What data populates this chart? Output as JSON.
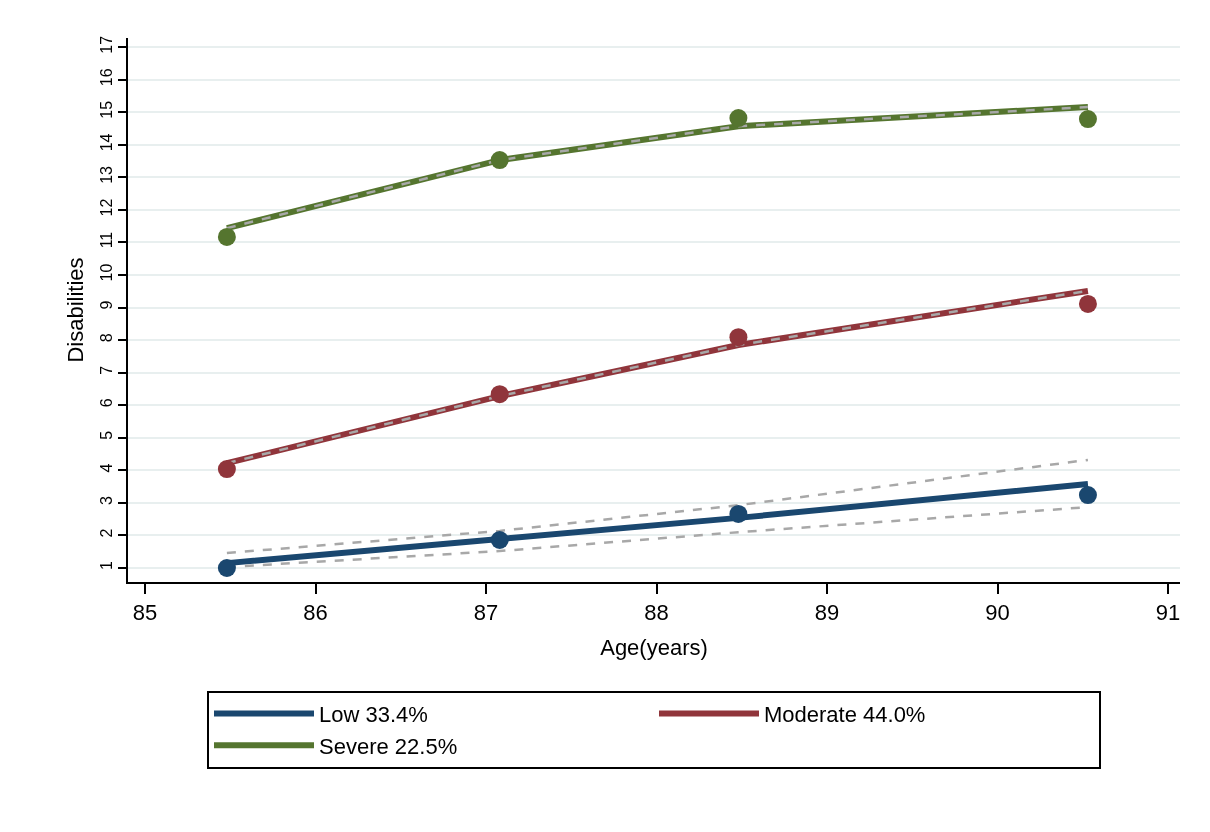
{
  "chart_data": {
    "type": "line",
    "xlabel": "Age(years)",
    "ylabel": "Disabilities",
    "x": [
      85.48,
      87.08,
      88.48,
      90.53
    ],
    "xlim": [
      84.9,
      91.07
    ],
    "xticks": [
      85,
      86,
      87,
      88,
      89,
      90,
      91
    ],
    "ylim": [
      0.57,
      17.28
    ],
    "yticks": [
      1,
      2,
      3,
      4,
      5,
      6,
      7,
      8,
      9,
      10,
      11,
      12,
      13,
      14,
      15,
      16,
      17
    ],
    "grid": "y",
    "legend": "bottom",
    "marker": "none",
    "series": [
      {
        "name": "Low 33.4%",
        "color": "#1a476f",
        "values": [
          1.15,
          1.89,
          2.54,
          3.58
        ]
      },
      {
        "name": "Moderate 44.0%",
        "color": "#90353b",
        "values": [
          4.22,
          6.28,
          7.85,
          9.51
        ]
      },
      {
        "name": "Severe 22.5%",
        "color": "#55752f",
        "values": [
          11.44,
          13.53,
          14.57,
          15.16
        ]
      },
      {
        "color": "#a8a8a8",
        "line_style": "dashed",
        "values": [
          1.46,
          2.14,
          2.93,
          4.32
        ]
      },
      {
        "color": "#a8a8a8",
        "line_style": "dashed",
        "values": [
          1.03,
          1.52,
          2.1,
          2.87
        ]
      },
      {
        "color": "#a8a8a8",
        "line_style": "dashed",
        "values": [
          4.22,
          6.28,
          7.85,
          9.51
        ]
      },
      {
        "color": "#a8a8a8",
        "line_style": "dashed",
        "values": [
          11.44,
          13.53,
          14.57,
          15.16
        ]
      },
      {
        "type": "scatter",
        "color": "#1a476f",
        "marker": "circle",
        "values": [
          1.0,
          1.86,
          2.66,
          3.24
        ]
      },
      {
        "type": "scatter",
        "color": "#90353b",
        "marker": "circle",
        "values": [
          4.04,
          6.34,
          8.09,
          9.11
        ]
      },
      {
        "type": "scatter",
        "color": "#55752f",
        "marker": "circle",
        "values": [
          11.17,
          13.53,
          14.82,
          14.79
        ]
      }
    ]
  }
}
